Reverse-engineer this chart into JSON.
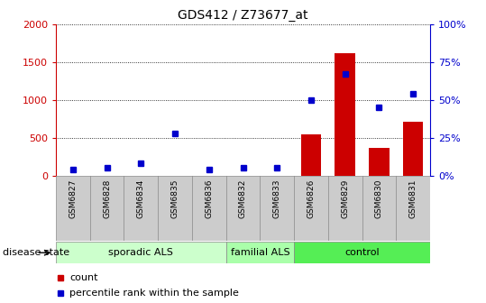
{
  "title": "GDS412 / Z73677_at",
  "samples": [
    "GSM6827",
    "GSM6828",
    "GSM6834",
    "GSM6835",
    "GSM6836",
    "GSM6832",
    "GSM6833",
    "GSM6826",
    "GSM6829",
    "GSM6830",
    "GSM6831"
  ],
  "counts": [
    0,
    0,
    0,
    0,
    0,
    0,
    0,
    550,
    1620,
    370,
    710
  ],
  "percentiles": [
    4,
    5,
    8,
    28,
    4,
    5,
    5,
    50,
    67,
    45,
    54
  ],
  "groups": [
    {
      "label": "sporadic ALS",
      "start": 0,
      "end": 5,
      "color": "#ccffcc"
    },
    {
      "label": "familial ALS",
      "start": 5,
      "end": 7,
      "color": "#aaffaa"
    },
    {
      "label": "control",
      "start": 7,
      "end": 11,
      "color": "#55ee55"
    }
  ],
  "ylim_left": [
    0,
    2000
  ],
  "ylim_right": [
    0,
    100
  ],
  "yticks_left": [
    0,
    500,
    1000,
    1500,
    2000
  ],
  "yticks_right": [
    0,
    25,
    50,
    75,
    100
  ],
  "bar_color": "#cc0000",
  "dot_color": "#0000cc",
  "grid_color": "#000000",
  "left_axis_color": "#cc0000",
  "right_axis_color": "#0000cc",
  "legend_count_label": "count",
  "legend_pct_label": "percentile rank within the sample",
  "disease_state_label": "disease state",
  "bg_xtick": "#cccccc",
  "bar_width": 0.6,
  "dot_size": 5
}
